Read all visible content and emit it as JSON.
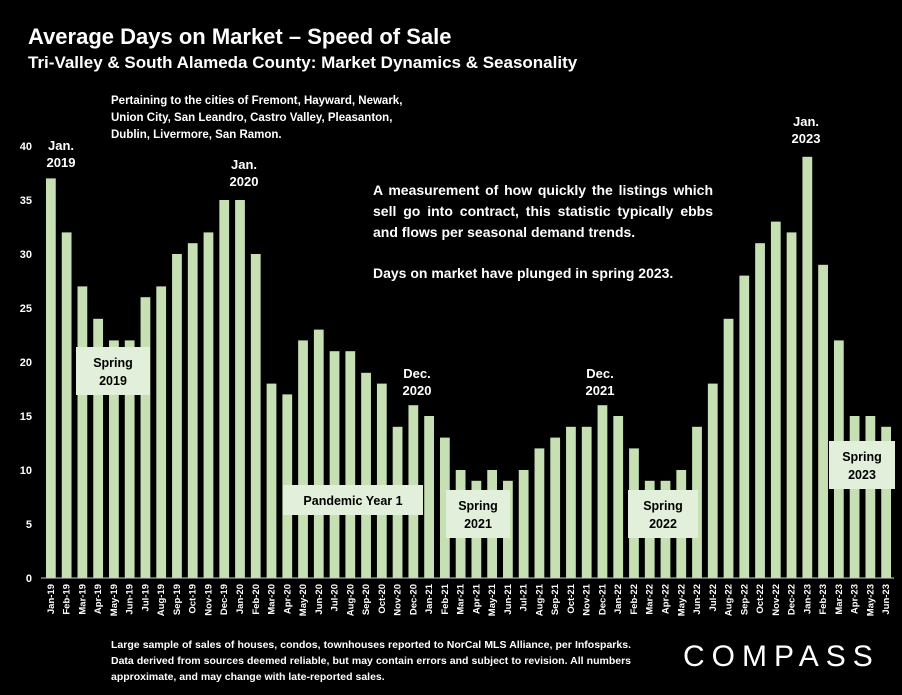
{
  "title": "Average Days on Market – Speed of Sale",
  "subtitle": "Tri-Valley & South Alameda County: Market Dynamics & Seasonality",
  "note_cities": "Pertaining to the cities of Fremont, Hayward, Newark, Union City, San Leandro, Castro Valley, Pleasanton, Dublin, Livermore, San Ramon.",
  "description": {
    "p1": "A measurement of how quickly the listings which sell go into contract, this statistic typically ebbs and flows per seasonal demand trends.",
    "p2": "Days on market have plunged in spring 2023."
  },
  "footer": "Large sample of sales of houses, condos, townhouses reported to NorCal MLS Alliance, per Infosparks. Data derived from sources deemed reliable, but may contain errors and subject to revision. All numbers approximate, and may change with late-reported sales.",
  "logo": "COMPASS",
  "colors": {
    "bar": "#c6e0b4",
    "box": "#e2efda",
    "background": "#000000",
    "text": "#ffffff"
  },
  "chart_data": {
    "type": "bar",
    "ylim": [
      0,
      40
    ],
    "yticks": [
      0,
      5,
      10,
      15,
      20,
      25,
      30,
      35,
      40
    ],
    "grid": false,
    "categories": [
      "Jan-19",
      "Feb-19",
      "Mar-19",
      "Apr-19",
      "May-19",
      "Jun-19",
      "Jul-19",
      "Aug-19",
      "Sep-19",
      "Oct-19",
      "Nov-19",
      "Dec-19",
      "Jan-20",
      "Feb-20",
      "Mar-20",
      "Apr-20",
      "May-20",
      "Jun-20",
      "Jul-20",
      "Aug-20",
      "Sep-20",
      "Oct-20",
      "Nov-20",
      "Dec-20",
      "Jan-21",
      "Feb-21",
      "Mar-21",
      "Apr-21",
      "May-21",
      "Jun-21",
      "Jul-21",
      "Aug-21",
      "Sep-21",
      "Oct-21",
      "Nov-21",
      "Dec-21",
      "Jan-22",
      "Feb-22",
      "Mar-22",
      "Apr-22",
      "May-22",
      "Jun-22",
      "Jul-22",
      "Aug-22",
      "Sep-22",
      "Oct-22",
      "Nov-22",
      "Dec-22",
      "Jan-23",
      "Feb-23",
      "Mar-23",
      "Apr-23",
      "May-23",
      "Jun-23"
    ],
    "values": [
      37,
      32,
      27,
      24,
      22,
      22,
      26,
      27,
      30,
      31,
      32,
      35,
      35,
      30,
      18,
      17,
      22,
      23,
      21,
      21,
      19,
      18,
      14,
      16,
      15,
      13,
      10,
      9,
      10,
      9,
      10,
      12,
      13,
      14,
      14,
      16,
      15,
      12,
      9,
      9,
      10,
      14,
      18,
      24,
      28,
      31,
      33,
      32,
      39,
      29,
      22,
      15,
      15,
      14
    ],
    "annotations": [
      {
        "lines": [
          "Jan.",
          "2019"
        ],
        "index": 0
      },
      {
        "lines": [
          "Jan.",
          "2020"
        ],
        "index": 12
      },
      {
        "lines": [
          "Dec.",
          "2020"
        ],
        "index": 23
      },
      {
        "lines": [
          "Dec.",
          "2021"
        ],
        "index": 35
      },
      {
        "lines": [
          "Jan.",
          "2023"
        ],
        "index": 48
      }
    ],
    "boxes": [
      {
        "lines": [
          "Spring",
          "2019"
        ]
      },
      {
        "lines": [
          "Pandemic Year 1"
        ]
      },
      {
        "lines": [
          "Spring",
          "2021"
        ]
      },
      {
        "lines": [
          "Spring",
          "2022"
        ]
      },
      {
        "lines": [
          "Spring",
          "2023"
        ]
      }
    ]
  }
}
